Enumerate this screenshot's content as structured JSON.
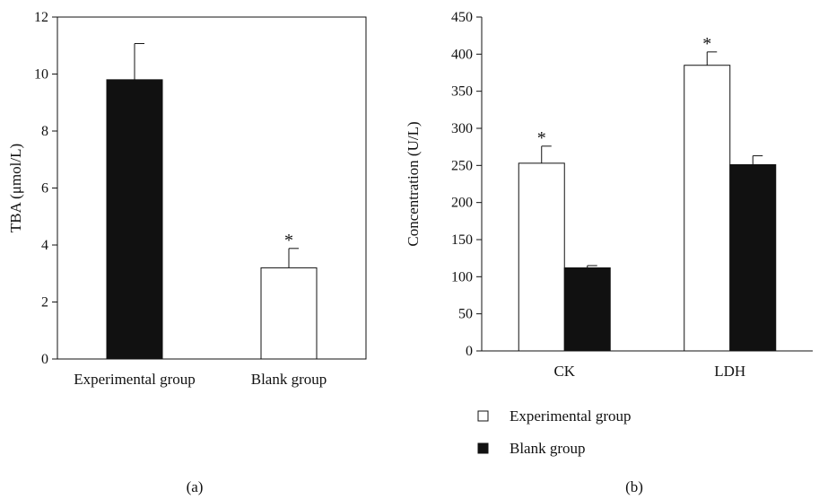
{
  "chart_data": [
    {
      "type": "bar",
      "panel_label": "(a)",
      "ylabel": "TBA (μmol/L)",
      "ylim": [
        0,
        12
      ],
      "yticks": [
        0,
        2,
        4,
        6,
        8,
        10,
        12
      ],
      "categories": [
        "Experimental group",
        "Blank group"
      ],
      "values": [
        9.8,
        3.2
      ],
      "errors": [
        1.27,
        0.68
      ],
      "bar_fills": [
        "#111111",
        "#ffffff"
      ],
      "significance": [
        "",
        "*"
      ]
    },
    {
      "type": "bar",
      "panel_label": "(b)",
      "ylabel": "Concentration (U/L)",
      "ylim": [
        0,
        450
      ],
      "yticks": [
        0,
        50,
        100,
        150,
        200,
        250,
        300,
        350,
        400,
        450
      ],
      "categories": [
        "CK",
        "LDH"
      ],
      "series": [
        {
          "name": "Experimental group",
          "fill": "#ffffff",
          "values": [
            253,
            385
          ],
          "errors": [
            23,
            18
          ],
          "significance": [
            "*",
            "*"
          ]
        },
        {
          "name": "Blank group",
          "fill": "#111111",
          "values": [
            112,
            251
          ],
          "errors": [
            3,
            12
          ],
          "significance": [
            "",
            ""
          ]
        }
      ],
      "legend_position": "bottom-left"
    }
  ]
}
